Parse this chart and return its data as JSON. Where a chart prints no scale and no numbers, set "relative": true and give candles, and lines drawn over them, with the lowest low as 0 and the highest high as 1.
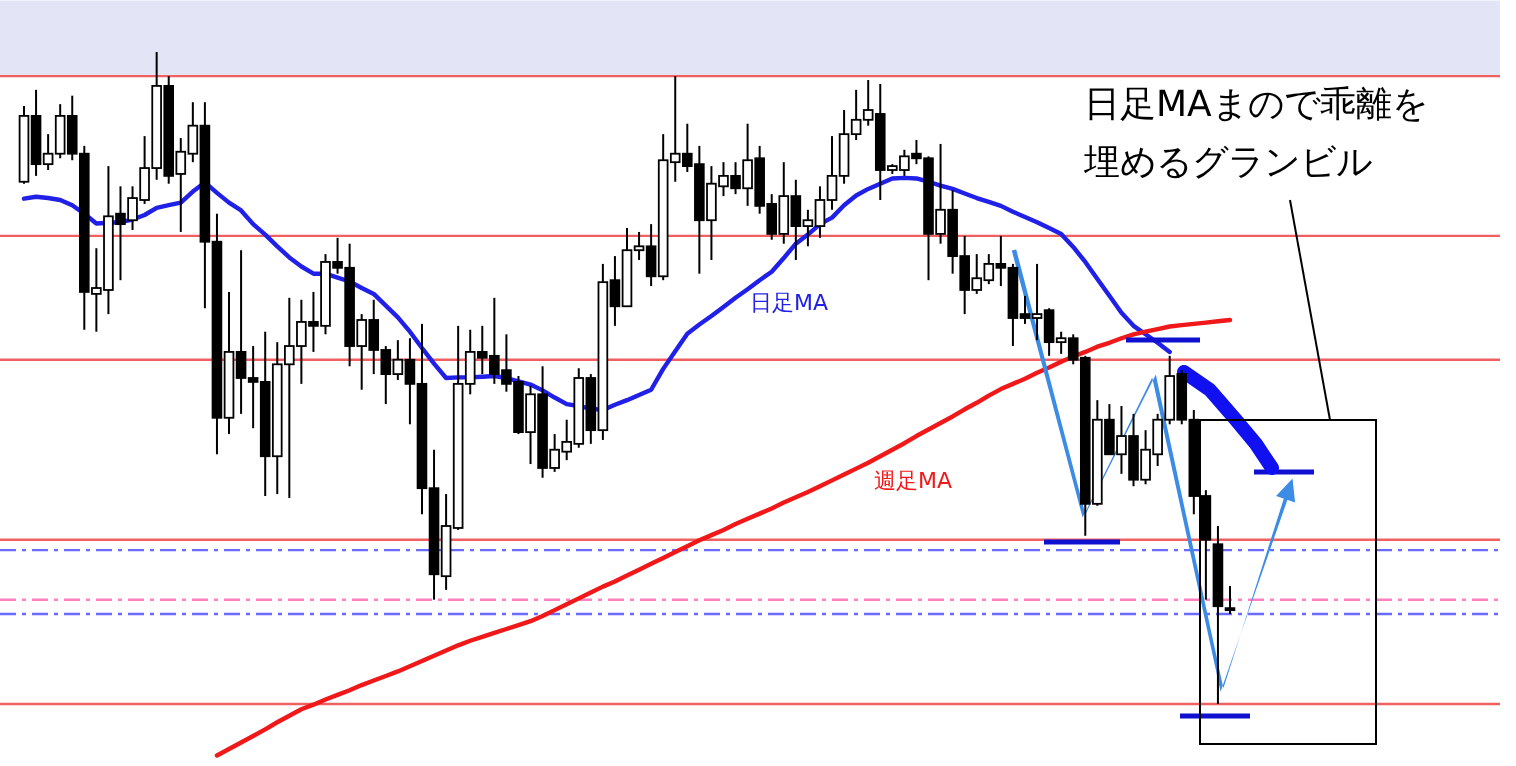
{
  "chart_data": {
    "type": "candlestick",
    "relative": true,
    "categories": [
      null,
      null,
      null,
      null,
      null,
      null,
      null,
      null,
      null,
      null,
      null,
      null,
      null,
      null,
      null,
      null,
      null,
      null,
      null,
      null,
      null,
      null,
      null,
      null,
      null,
      null,
      null,
      null,
      null,
      null,
      null,
      null,
      null,
      null,
      null,
      null,
      null,
      null,
      null,
      null,
      null,
      null,
      null,
      null,
      null,
      null,
      null,
      null,
      null,
      null,
      null,
      null,
      null,
      null,
      null,
      null,
      null,
      null,
      null,
      null,
      null,
      null,
      null,
      null,
      null,
      null,
      null,
      null,
      null,
      null,
      null,
      null,
      null,
      null,
      null,
      null,
      null,
      null,
      null,
      null,
      null,
      null,
      null,
      null,
      null,
      null,
      null,
      null,
      null,
      null,
      null,
      null,
      null,
      null,
      null,
      null,
      null,
      null,
      null,
      null,
      null
    ],
    "ohlc": [
      [
        0.801,
        0.917,
        0.798,
        0.902
      ],
      [
        0.902,
        0.942,
        0.81,
        0.828
      ],
      [
        0.828,
        0.874,
        0.819,
        0.844
      ],
      [
        0.844,
        0.92,
        0.837,
        0.902
      ],
      [
        0.902,
        0.933,
        0.834,
        0.844
      ],
      [
        0.844,
        0.856,
        0.574,
        0.632
      ],
      [
        0.629,
        0.699,
        0.571,
        0.638
      ],
      [
        0.635,
        0.825,
        0.598,
        0.748
      ],
      [
        0.752,
        0.794,
        0.65,
        0.736
      ],
      [
        0.742,
        0.794,
        0.727,
        0.776
      ],
      [
        0.773,
        0.871,
        0.767,
        0.822
      ],
      [
        0.822,
        1.0,
        0.804,
        0.948
      ],
      [
        0.948,
        0.963,
        0.798,
        0.81
      ],
      [
        0.813,
        0.868,
        0.724,
        0.847
      ],
      [
        0.844,
        0.923,
        0.831,
        0.887
      ],
      [
        0.887,
        0.923,
        0.607,
        0.709
      ],
      [
        0.709,
        0.752,
        0.383,
        0.439
      ],
      [
        0.439,
        0.632,
        0.414,
        0.54
      ],
      [
        0.54,
        0.696,
        0.445,
        0.5
      ],
      [
        0.5,
        0.549,
        0.423,
        0.494
      ],
      [
        0.494,
        0.571,
        0.319,
        0.38
      ],
      [
        0.38,
        0.555,
        0.322,
        0.521
      ],
      [
        0.521,
        0.623,
        0.316,
        0.549
      ],
      [
        0.549,
        0.62,
        0.491,
        0.586
      ],
      [
        0.586,
        0.632,
        0.54,
        0.58
      ],
      [
        0.58,
        0.69,
        0.567,
        0.678
      ],
      [
        0.678,
        0.715,
        0.66,
        0.669
      ],
      [
        0.669,
        0.706,
        0.518,
        0.549
      ],
      [
        0.549,
        0.598,
        0.482,
        0.589
      ],
      [
        0.589,
        0.62,
        0.506,
        0.543
      ],
      [
        0.543,
        0.549,
        0.46,
        0.506
      ],
      [
        0.506,
        0.558,
        0.497,
        0.528
      ],
      [
        0.528,
        0.561,
        0.429,
        0.491
      ],
      [
        0.491,
        0.583,
        0.291,
        0.331
      ],
      [
        0.331,
        0.39,
        0.16,
        0.199
      ],
      [
        0.196,
        0.322,
        0.175,
        0.273
      ],
      [
        0.27,
        0.58,
        0.267,
        0.491
      ],
      [
        0.491,
        0.574,
        0.475,
        0.54
      ],
      [
        0.54,
        0.58,
        0.506,
        0.531
      ],
      [
        0.534,
        0.623,
        0.491,
        0.506
      ],
      [
        0.512,
        0.567,
        0.479,
        0.491
      ],
      [
        0.494,
        0.503,
        0.414,
        0.417
      ],
      [
        0.417,
        0.488,
        0.368,
        0.475
      ],
      [
        0.475,
        0.518,
        0.347,
        0.362
      ],
      [
        0.362,
        0.414,
        0.356,
        0.39
      ],
      [
        0.387,
        0.436,
        0.374,
        0.402
      ],
      [
        0.399,
        0.515,
        0.393,
        0.5
      ],
      [
        0.5,
        0.506,
        0.399,
        0.42
      ],
      [
        0.42,
        0.675,
        0.405,
        0.647
      ],
      [
        0.65,
        0.687,
        0.58,
        0.61
      ],
      [
        0.61,
        0.73,
        0.61,
        0.696
      ],
      [
        0.696,
        0.724,
        0.681,
        0.702
      ],
      [
        0.702,
        0.736,
        0.641,
        0.656
      ],
      [
        0.656,
        0.874,
        0.65,
        0.834
      ],
      [
        0.831,
        0.963,
        0.801,
        0.844
      ],
      [
        0.844,
        0.89,
        0.816,
        0.825
      ],
      [
        0.828,
        0.856,
        0.66,
        0.742
      ],
      [
        0.742,
        0.825,
        0.681,
        0.798
      ],
      [
        0.794,
        0.831,
        0.779,
        0.81
      ],
      [
        0.81,
        0.831,
        0.782,
        0.791
      ],
      [
        0.791,
        0.89,
        0.764,
        0.834
      ],
      [
        0.837,
        0.856,
        0.752,
        0.764
      ],
      [
        0.767,
        0.782,
        0.712,
        0.721
      ],
      [
        0.721,
        0.831,
        0.706,
        0.779
      ],
      [
        0.779,
        0.804,
        0.681,
        0.733
      ],
      [
        0.733,
        0.758,
        0.702,
        0.742
      ],
      [
        0.733,
        0.794,
        0.715,
        0.773
      ],
      [
        0.773,
        0.871,
        0.758,
        0.81
      ],
      [
        0.81,
        0.911,
        0.798,
        0.874
      ],
      [
        0.874,
        0.942,
        0.865,
        0.896
      ],
      [
        0.896,
        0.957,
        0.887,
        0.911
      ],
      [
        0.905,
        0.951,
        0.773,
        0.819
      ],
      [
        0.819,
        0.828,
        0.813,
        0.825
      ],
      [
        0.819,
        0.85,
        0.81,
        0.84
      ],
      [
        0.844,
        0.865,
        0.828,
        0.837
      ],
      [
        0.837,
        0.84,
        0.65,
        0.721
      ],
      [
        0.721,
        0.859,
        0.706,
        0.758
      ],
      [
        0.758,
        0.788,
        0.66,
        0.687
      ],
      [
        0.687,
        0.718,
        0.598,
        0.635
      ],
      [
        0.635,
        0.69,
        0.629,
        0.653
      ],
      [
        0.65,
        0.69,
        0.644,
        0.675
      ],
      [
        0.675,
        0.718,
        0.641,
        0.669
      ],
      [
        0.669,
        0.675,
        0.549,
        0.592
      ],
      [
        0.598,
        0.626,
        0.583,
        0.592
      ],
      [
        0.592,
        0.675,
        0.558,
        0.598
      ],
      [
        0.604,
        0.607,
        0.534,
        0.555
      ],
      [
        0.555,
        0.571,
        0.537,
        0.561
      ],
      [
        0.561,
        0.567,
        0.521,
        0.528
      ],
      [
        0.531,
        0.534,
        0.258,
        0.307
      ],
      [
        0.307,
        0.466,
        0.304,
        0.436
      ],
      [
        0.436,
        0.46,
        0.383,
        0.383
      ],
      [
        0.383,
        0.457,
        0.353,
        0.411
      ],
      [
        0.411,
        0.445,
        0.334,
        0.344
      ],
      [
        0.344,
        0.42,
        0.337,
        0.39
      ],
      [
        0.383,
        0.445,
        0.365,
        0.436
      ],
      [
        0.436,
        0.534,
        0.429,
        0.503
      ],
      [
        0.506,
        0.512,
        0.429,
        0.436
      ],
      [
        0.436,
        0.451,
        0.291,
        0.319
      ],
      [
        0.319,
        0.328,
        0.16,
        0.252
      ],
      [
        0.245,
        0.273,
        0.0,
        0.15
      ],
      [
        0.147,
        0.181,
        0.138,
        0.144
      ]
    ],
    "series": [
      {
        "type": "line",
        "color": "#2020e8",
        "values": [
          0.775,
          0.778,
          0.776,
          0.773,
          0.765,
          0.752,
          0.737,
          0.738,
          0.739,
          0.743,
          0.75,
          0.761,
          0.765,
          0.769,
          0.786,
          0.8,
          0.784,
          0.769,
          0.757,
          0.736,
          0.72,
          0.702,
          0.685,
          0.671,
          0.66,
          0.66,
          0.654,
          0.648,
          0.638,
          0.629,
          0.611,
          0.593,
          0.571,
          0.546,
          0.522,
          0.5,
          0.501,
          0.501,
          0.502,
          0.503,
          0.5,
          0.495,
          0.49,
          0.481,
          0.47,
          0.46,
          0.457,
          0.453,
          0.451,
          0.459,
          0.466,
          0.474,
          0.482,
          0.514,
          0.541,
          0.568,
          0.582,
          0.595,
          0.609,
          0.623,
          0.636,
          0.65,
          0.663,
          0.684,
          0.706,
          0.72,
          0.736,
          0.746,
          0.765,
          0.78,
          0.79,
          0.798,
          0.806,
          0.807,
          0.806,
          0.801,
          0.795,
          0.79,
          0.783,
          0.776,
          0.77,
          0.764,
          0.755,
          0.747,
          0.739,
          0.73,
          0.721,
          0.701,
          0.678,
          0.652,
          0.626,
          0.6,
          0.58,
          0.567,
          0.554,
          0.54,
          null,
          null,
          null,
          null,
          null
        ]
      },
      {
        "type": "line",
        "color": "#f01818",
        "values": [
          null,
          null,
          null,
          null,
          null,
          null,
          null,
          null,
          null,
          null,
          null,
          null,
          null,
          null,
          null,
          null,
          -0.079,
          -0.069,
          -0.059,
          -0.049,
          -0.039,
          -0.028,
          -0.018,
          -0.008,
          -0.001,
          0.007,
          0.014,
          0.021,
          0.029,
          0.036,
          0.043,
          0.05,
          0.058,
          0.066,
          0.074,
          0.082,
          0.09,
          0.097,
          0.103,
          0.109,
          0.115,
          0.121,
          0.127,
          0.135,
          0.144,
          0.153,
          0.162,
          0.171,
          0.18,
          0.188,
          0.197,
          0.206,
          0.215,
          0.224,
          0.233,
          0.242,
          0.251,
          0.259,
          0.267,
          0.276,
          0.284,
          0.292,
          0.3,
          0.309,
          0.317,
          0.325,
          0.334,
          0.343,
          0.352,
          0.361,
          0.37,
          0.38,
          0.39,
          0.4,
          0.411,
          0.421,
          0.431,
          0.441,
          0.452,
          0.462,
          0.473,
          0.483,
          0.491,
          0.499,
          0.508,
          0.516,
          0.525,
          0.533,
          0.54,
          0.548,
          0.554,
          0.561,
          0.567,
          0.571,
          0.575,
          0.579,
          0.581,
          0.583,
          0.585,
          0.587,
          0.589
        ]
      }
    ],
    "ref_lines": [
      {
        "axis": "y",
        "value": 0.963,
        "color": "#f06060",
        "line_style": "solid"
      },
      {
        "axis": "y",
        "value": 0.718,
        "color": "#f06060",
        "line_style": "solid"
      },
      {
        "axis": "y",
        "value": 0.528,
        "color": "#f06060",
        "line_style": "solid"
      },
      {
        "axis": "y",
        "value": 0.252,
        "color": "#f06060",
        "line_style": "solid"
      },
      {
        "axis": "y",
        "value": 0.236,
        "color": "#6a6aff",
        "line_style": "dashdot"
      },
      {
        "axis": "y",
        "value": 0.16,
        "color": "#ff80c0",
        "line_style": "dashdot"
      },
      {
        "axis": "y",
        "value": 0.138,
        "color": "#6a6aff",
        "line_style": "dashdot"
      },
      {
        "axis": "y",
        "value": 0.0,
        "color": "#f06060",
        "line_style": "solid"
      }
    ],
    "bands": [
      {
        "axis": "y",
        "from": 0.963,
        "to": 1.079,
        "color": "#e4e4f7"
      }
    ],
    "annotations": [
      "日足MA",
      "週足MA",
      "日足MAまので乖離を",
      "埋めるグランビル"
    ]
  }
}
